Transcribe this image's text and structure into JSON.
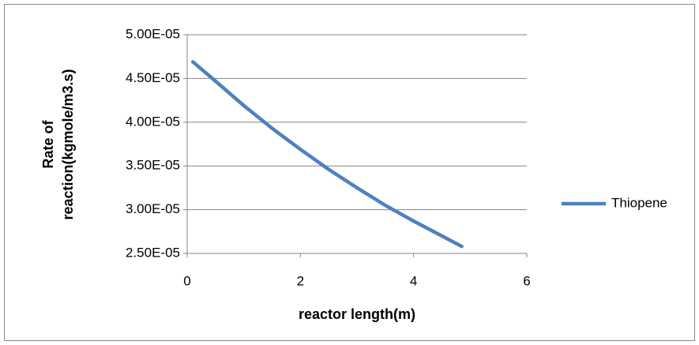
{
  "chart_data": {
    "type": "line",
    "ylabel": [
      "Rate of",
      "reaction(kgmole/m3.s)"
    ],
    "xlabel": "reactor length(m)",
    "x": [
      0.1,
      0.5,
      1,
      1.5,
      2,
      2.5,
      3,
      3.5,
      4,
      4.5,
      4.85
    ],
    "series": [
      {
        "name": "Thiopene",
        "color": "#4f81bd",
        "values": [
          4.69e-05,
          4.47e-05,
          4.19e-05,
          3.93e-05,
          3.69e-05,
          3.46e-05,
          3.25e-05,
          3.05e-05,
          2.87e-05,
          2.7e-05,
          2.58e-05
        ]
      }
    ],
    "xlim": [
      0,
      6
    ],
    "xticks": [
      0,
      2,
      4,
      6
    ],
    "ylim": [
      2.5e-05,
      5e-05
    ],
    "yticks": [
      {
        "value": 2.5e-05,
        "label": "2.50E-05"
      },
      {
        "value": 3e-05,
        "label": "3.00E-05"
      },
      {
        "value": 3.5e-05,
        "label": "3.50E-05"
      },
      {
        "value": 4e-05,
        "label": "4.00E-05"
      },
      {
        "value": 4.5e-05,
        "label": "4.50E-05"
      },
      {
        "value": 5e-05,
        "label": "5.00E-05"
      }
    ],
    "grid": true,
    "legend": "right"
  }
}
